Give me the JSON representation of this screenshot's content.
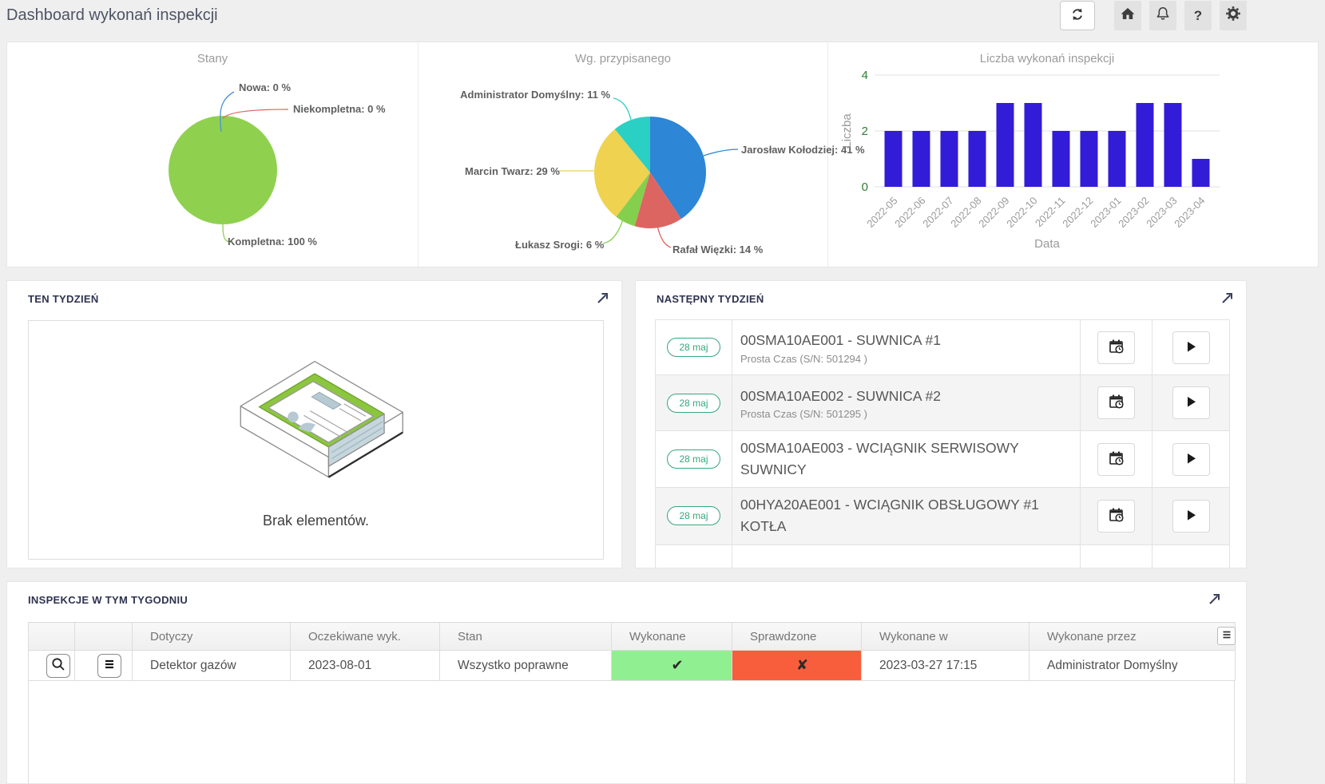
{
  "header": {
    "title": "Dashboard wykonań inspekcji",
    "help_glyph": "?"
  },
  "colors": {
    "badge_green": "#35a77c",
    "bar_blue": "#321cd8",
    "tick_green": "#2e7d32",
    "ok_green": "#90ef90",
    "fail_red": "#f85e3b"
  },
  "chart_data": [
    {
      "type": "pie",
      "title": "Stany",
      "slices": [
        {
          "name": "Nowa",
          "value": 0,
          "label": "Nowa: 0 %",
          "color": "#4a90d9"
        },
        {
          "name": "Niekompletna",
          "value": 0,
          "label": "Niekompletna: 0 %",
          "color": "#e06561"
        },
        {
          "name": "Kompletna",
          "value": 100,
          "label": "Kompletna: 100 %",
          "color": "#8fd14f"
        }
      ]
    },
    {
      "type": "pie",
      "title": "Wg. przypisanego",
      "slices": [
        {
          "name": "Jarosław Kołodziej",
          "value": 41,
          "label": "Jarosław Kołodziej: 41 %",
          "color": "#2d86d6"
        },
        {
          "name": "Rafał Więzki",
          "value": 14,
          "label": "Rafał Więzki: 14 %",
          "color": "#dd6561"
        },
        {
          "name": "Łukasz Srogi",
          "value": 6,
          "label": "Łukasz Srogi: 6 %",
          "color": "#85cf4e"
        },
        {
          "name": "Marcin Twarz",
          "value": 29,
          "label": "Marcin Twarz: 29 %",
          "color": "#efd250"
        },
        {
          "name": "Administrator Domyślny",
          "value": 11,
          "label": "Administrator Domyślny: 11 %",
          "color": "#2bd0c5"
        }
      ]
    },
    {
      "type": "bar",
      "title": "Liczba wykonań inspekcji",
      "xlabel": "Data",
      "ylabel": "Liczba",
      "categories": [
        "2022-05",
        "2022-06",
        "2022-07",
        "2022-08",
        "2022-09",
        "2022-10",
        "2022-11",
        "2022-12",
        "2023-01",
        "2023-02",
        "2023-03",
        "2023-04"
      ],
      "values": [
        2,
        2,
        2,
        2,
        3,
        3,
        2,
        2,
        2,
        3,
        3,
        1
      ],
      "yticks": [
        0,
        2,
        4
      ],
      "ylim": [
        0,
        4
      ],
      "grid": true,
      "legend": "none"
    }
  ],
  "this_week": {
    "title": "TEN TYDZIEŃ",
    "empty_text": "Brak elementów."
  },
  "next_week": {
    "title": "NASTĘPNY TYDZIEŃ",
    "items": [
      {
        "date": "28 maj",
        "title": "00SMA10AE001 - SUWNICA #1",
        "subtitle": "Prosta Czas (S/N: 501294 )"
      },
      {
        "date": "28 maj",
        "title": "00SMA10AE002 - SUWNICA #2",
        "subtitle": "Prosta Czas (S/N: 501295 )"
      },
      {
        "date": "28 maj",
        "title": "00SMA10AE003 - WCIĄGNIK SERWISOWY SUWNICY",
        "subtitle": ""
      },
      {
        "date": "28 maj",
        "title": "00HYA20AE001 - WCIĄGNIK OBSŁUGOWY #1 KOTŁA",
        "subtitle": ""
      }
    ]
  },
  "inspections": {
    "title": "INSPEKCJE W TYM TYGODNIU",
    "columns": [
      "Dotyczy",
      "Oczekiwane wyk.",
      "Stan",
      "Wykonane",
      "Sprawdzone",
      "Wykonane w",
      "Wykonane przez"
    ],
    "rows": [
      {
        "dotyczy": "Detektor gazów",
        "oczekiwane_wyk": "2023-08-01",
        "stan": "Wszystko poprawne",
        "wykonane": "✔",
        "sprawdzone": "✘",
        "wykonane_w": "2023-03-27 17:15",
        "wykonane_przez": "Administrator Domyślny"
      }
    ]
  }
}
